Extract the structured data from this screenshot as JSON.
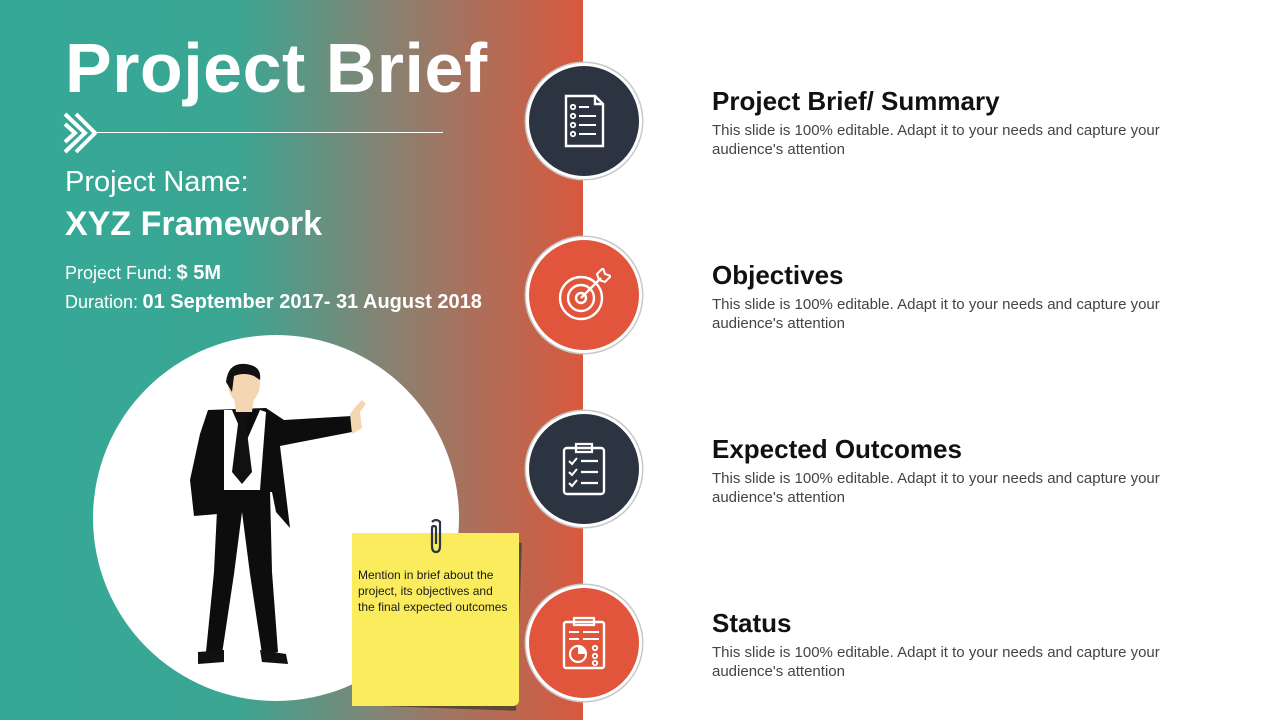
{
  "slide": {
    "title": "Project Brief",
    "project_name_label": "Project Name:",
    "project_name_value": "XYZ Framework",
    "fund_label": "Project Fund:",
    "fund_value": "$ 5M",
    "duration_label": "Duration:",
    "duration_value": "01 September 2017- 31 August 2018",
    "sticky_note": "Mention in brief about the project, its objectives and the final expected outcomes"
  },
  "items": [
    {
      "heading": "Project Brief/ Summary",
      "description": "This slide is 100% editable. Adapt it to your needs and capture your audience's attention",
      "icon": "document-list-icon",
      "color": "#2c3441"
    },
    {
      "heading": "Objectives",
      "description": "This slide is 100% editable. Adapt it to your needs and capture your audience's attention",
      "icon": "target-icon",
      "color": "#e0553c"
    },
    {
      "heading": "Expected Outcomes",
      "description": "This slide is 100% editable. Adapt it to your needs and capture your audience's attention",
      "icon": "clipboard-checklist-icon",
      "color": "#2c3441"
    },
    {
      "heading": "Status",
      "description": "This slide is 100% editable. Adapt it to your needs and capture your audience's attention",
      "icon": "report-chart-icon",
      "color": "#e0553c"
    }
  ],
  "colors": {
    "teal": "#35a898",
    "orange": "#e0553c",
    "dark": "#2c3441",
    "sticky": "#fbec5d"
  }
}
